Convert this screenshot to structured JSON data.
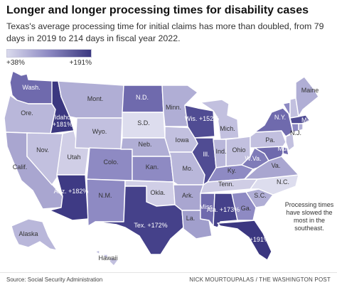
{
  "title": "Longer and longer processing times for disability cases",
  "subtitle": "Texas's average processing time for initial claims has more than doubled, from 79 days in 2019 to 214 days in fiscal year 2022.",
  "legend": {
    "min_label": "+38%",
    "max_label": "+191%",
    "color_low": "#d9d9ec",
    "color_high": "#3b3780"
  },
  "states": {
    "WA": {
      "label": "Wash.",
      "color": "#6f6aad"
    },
    "OR": {
      "label": "Ore.",
      "color": "#b9b7da"
    },
    "CA": {
      "label": "Calif.",
      "color": "#a9a6d0"
    },
    "ID": {
      "label": "Idaho",
      "value": "+181%",
      "color": "#3b3780"
    },
    "NV": {
      "label": "Nov.",
      "color": "#c2c0df"
    },
    "UT": {
      "label": "Utah",
      "color": "#d0cee6"
    },
    "AZ": {
      "label": "Ariz.",
      "value": "+182%",
      "color": "#3e3a84"
    },
    "MT": {
      "label": "Mont.",
      "color": "#b0aed5"
    },
    "WY": {
      "label": "Wyo.",
      "color": "#c2c0df"
    },
    "CO": {
      "label": "Colo.",
      "color": "#8e8ac3"
    },
    "NM": {
      "label": "N.M.",
      "color": "#8e8ac3"
    },
    "ND": {
      "label": "N.D.",
      "color": "#6f6aad"
    },
    "SD": {
      "label": "S.D.",
      "color": "#ddddee"
    },
    "NE": {
      "label": "Neb.",
      "color": "#b0aed5"
    },
    "KS": {
      "label": "Kan.",
      "color": "#8e8ac3"
    },
    "OK": {
      "label": "Okla.",
      "color": "#d0cee6"
    },
    "TX": {
      "label": "Tex.",
      "value": "+172%",
      "color": "#45418a"
    },
    "MN": {
      "label": "Minn.",
      "color": "#b0aed5"
    },
    "IA": {
      "label": "Iowa",
      "color": "#c2c0df"
    },
    "MO": {
      "label": "Mo.",
      "color": "#b9b7da"
    },
    "AR": {
      "label": "Ark.",
      "color": "#a9a6d0"
    },
    "LA": {
      "label": "La.",
      "color": "#a19fcc"
    },
    "WI": {
      "label": "Wis.",
      "value": "+152%",
      "color": "#504c93"
    },
    "IL": {
      "label": "Ill.",
      "color": "#504c93"
    },
    "MI": {
      "label": "Mich.",
      "color": "#c2c0df"
    },
    "IN": {
      "label": "Ind.",
      "color": "#b9b7da"
    },
    "OH": {
      "label": "Ohio",
      "color": "#c2c0df"
    },
    "KY": {
      "label": "Ky.",
      "color": "#8e8ac3"
    },
    "TN": {
      "label": "Tenn.",
      "color": "#cfcde5"
    },
    "MS": {
      "label": "Miss.",
      "color": "#6f6aad"
    },
    "AL": {
      "label": "Ala.",
      "value": "+173%",
      "color": "#45418a"
    },
    "GA": {
      "label": "Ga.",
      "color": "#8e8ac3"
    },
    "FL": {
      "label": "Fla.",
      "value": "+191%",
      "color": "#3b3780"
    },
    "SC": {
      "label": "S.C.",
      "color": "#b0aed5"
    },
    "NC": {
      "label": "N.C.",
      "color": "#ddddee"
    },
    "VA": {
      "label": "Va.",
      "color": "#a9a6d0"
    },
    "WV": {
      "label": "W.Va.",
      "color": "#7f7bb8"
    },
    "PA": {
      "label": "Pa.",
      "color": "#c2c0df"
    },
    "NY": {
      "label": "N.Y.",
      "color": "#6f6aad"
    },
    "VT": {
      "label": "",
      "color": "#8e8ac3"
    },
    "NH": {
      "label": "",
      "color": "#c2c0df"
    },
    "ME": {
      "label": "Maine",
      "color": "#b0aed5"
    },
    "MA": {
      "label": "Mass.",
      "color": "#504c93"
    },
    "CT": {
      "label": "",
      "color": "#8e8ac3"
    },
    "RI": {
      "label": "",
      "color": "#b0aed5"
    },
    "NJ": {
      "label": "N.J.",
      "color": "#c2c0df"
    },
    "DE": {
      "label": "",
      "color": "#6f6aad"
    },
    "MD": {
      "label": "Md.",
      "color": "#6f6aad"
    },
    "AK": {
      "label": "Alaska",
      "color": "#b9b7da"
    },
    "HI": {
      "label": "Hawaii",
      "color": "#c2c0df"
    }
  },
  "note": "Processing times have slowed the most in the southeast.",
  "source": "Source: Social Security Administration",
  "credit": "NICK MOURTOUPALAS / THE WASHINGTON POST"
}
